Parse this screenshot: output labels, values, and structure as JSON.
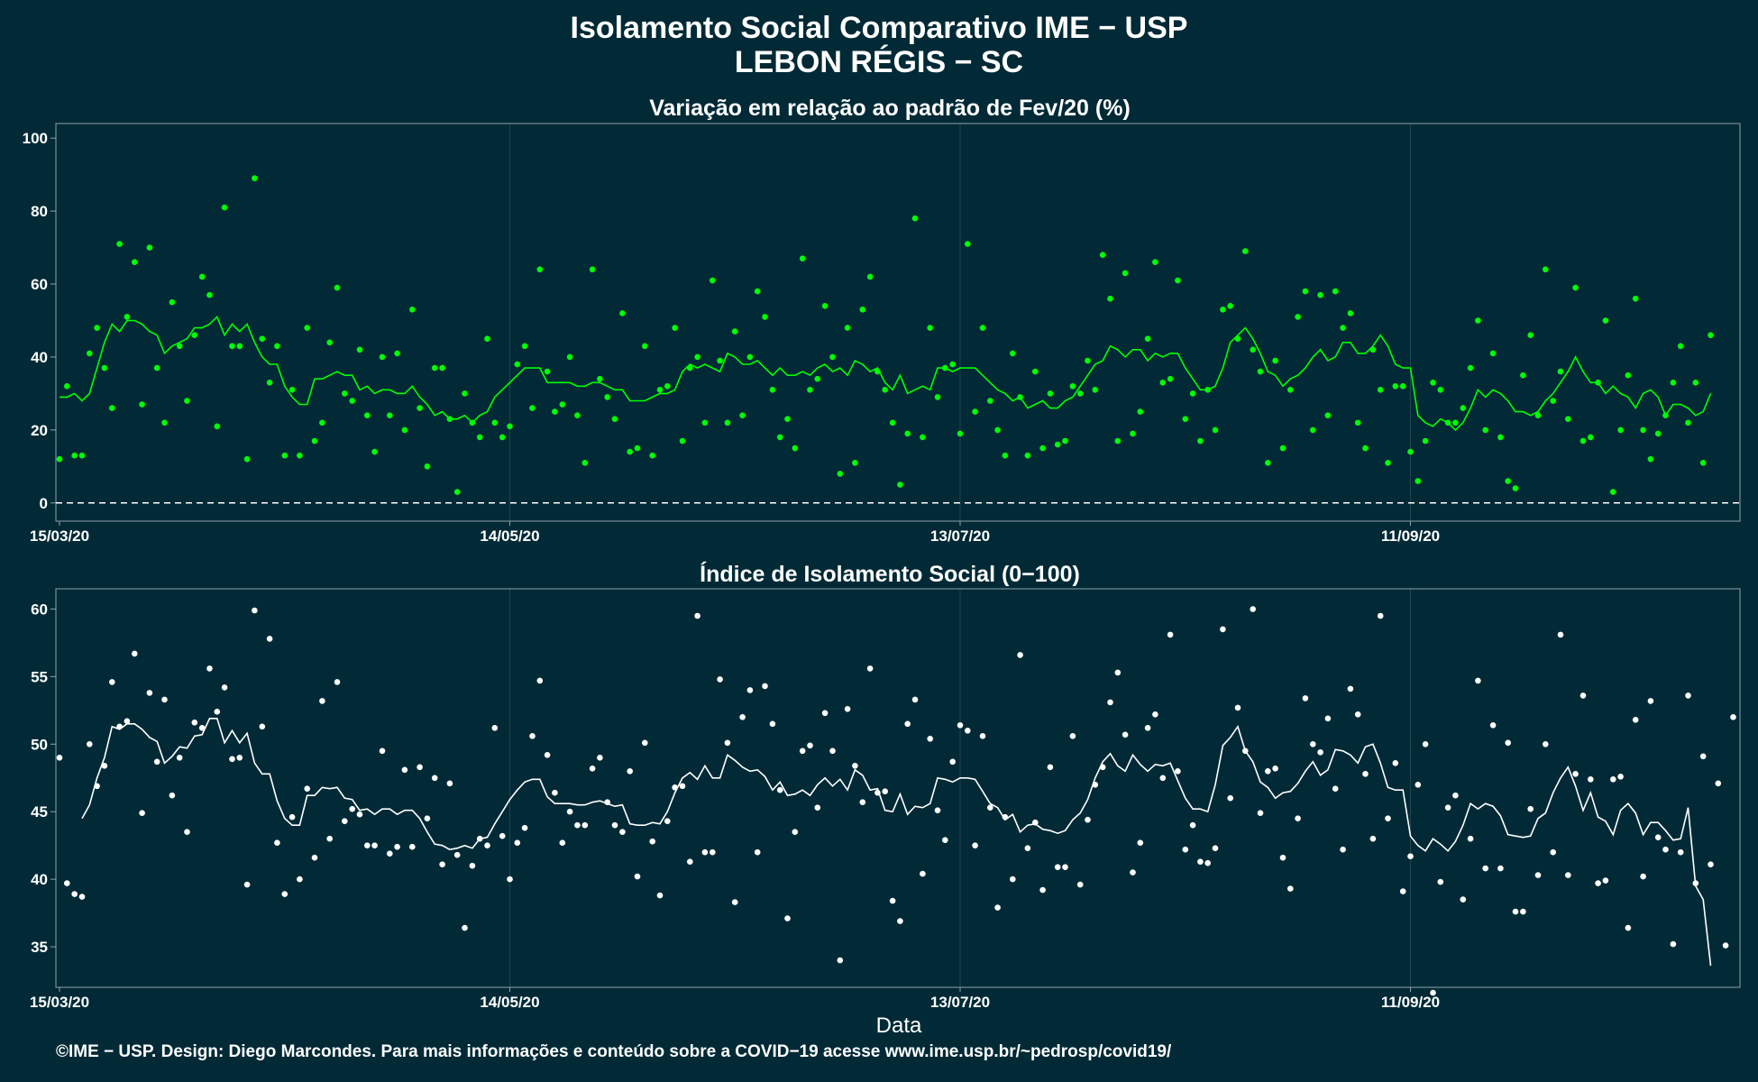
{
  "title": "Isolamento Social Comparativo IME − USP",
  "subtitle": "LEBON RÉGIS − SC",
  "footer": "©IME − USP. Design: Diego Marcondes. Para mais informações e conteúdo sobre a COVID−19 acesse www.ime.usp.br/~pedrosp/covid19/",
  "colors": {
    "background": "#012a36",
    "panel_border": "#8fa3a9",
    "grid": "#23434d",
    "series_top": "#00ff00",
    "series_bottom": "#ffffff"
  },
  "chart_data": [
    {
      "type": "scatter",
      "title": "Variação em relação ao padrão de Fev/20 (%)",
      "xlabel": "",
      "x_start": "15/03/20",
      "xticks": [
        "15/03/20",
        "14/05/20",
        "13/07/20",
        "11/09/20"
      ],
      "xtick_day_offsets": [
        0,
        60,
        120,
        180
      ],
      "ylim": [
        -5,
        104
      ],
      "yticks": [
        0,
        20,
        40,
        60,
        80,
        100
      ],
      "reference_line": 0,
      "series": [
        {
          "points": [
            12,
            32,
            13,
            13,
            41,
            48,
            37,
            26,
            71,
            51,
            66,
            27,
            70,
            37,
            22,
            55,
            43,
            28,
            46,
            62,
            57,
            21,
            81,
            43,
            43,
            12,
            89,
            45,
            33,
            43,
            13,
            31,
            13,
            48,
            17,
            22,
            44,
            59,
            30,
            28,
            42,
            24,
            14,
            40,
            24,
            41,
            20,
            53,
            26,
            10,
            37,
            37,
            23,
            3,
            30,
            22,
            18,
            45,
            22,
            18,
            21,
            38,
            43,
            26,
            64,
            36,
            25,
            27,
            40,
            24,
            11,
            64,
            34,
            29,
            23,
            52,
            14,
            15,
            43,
            13,
            31,
            32,
            48,
            17,
            37,
            40,
            22,
            61,
            39,
            22,
            47,
            24,
            40,
            58,
            51,
            31,
            18,
            23,
            15,
            67,
            31,
            34,
            54,
            40,
            8,
            48,
            11,
            53,
            62,
            36,
            31,
            22,
            5,
            19,
            78,
            18,
            48,
            29,
            37,
            38,
            19,
            71,
            25,
            48,
            28,
            20,
            13,
            41,
            29,
            13,
            36,
            15,
            30,
            16,
            17,
            32,
            30,
            39,
            31,
            68,
            56,
            17,
            63,
            19,
            25,
            45,
            66,
            33,
            34,
            61,
            23,
            30,
            17,
            31,
            20,
            53,
            54,
            45,
            69,
            42,
            36,
            11,
            39,
            15,
            31,
            51,
            58,
            20,
            57,
            24,
            58,
            48,
            52,
            22,
            15,
            42,
            31,
            11,
            32,
            32,
            14,
            6,
            17,
            33,
            31,
            22,
            22,
            26,
            37,
            50,
            20,
            41,
            18,
            6,
            4,
            35,
            46,
            24,
            64,
            28,
            36,
            23,
            59,
            17,
            18,
            33,
            50,
            3,
            20,
            35,
            56,
            20,
            12,
            19,
            24,
            33,
            43,
            22,
            33,
            11,
            46
          ]
        },
        {
          "smooth": [
            29,
            29,
            30,
            28,
            30,
            37,
            44,
            49,
            47,
            50,
            50,
            49,
            47,
            46,
            41,
            43,
            44,
            45,
            48,
            48,
            49,
            51,
            46,
            49,
            47,
            49,
            44,
            40,
            38,
            38,
            32,
            29,
            27,
            27,
            34,
            34,
            35,
            36,
            35,
            35,
            31,
            32,
            30,
            31,
            31,
            30,
            30,
            32,
            29,
            27,
            24,
            25,
            23,
            23,
            24,
            22,
            24,
            25,
            29,
            31,
            33,
            35,
            37,
            37,
            37,
            33,
            33,
            33,
            33,
            32,
            32,
            33,
            33,
            32,
            31,
            31,
            28,
            28,
            28,
            29,
            30,
            30,
            31,
            36,
            38,
            37,
            38,
            37,
            36,
            41,
            40,
            38,
            38,
            39,
            37,
            35,
            37,
            35,
            35,
            36,
            35,
            37,
            38,
            36,
            37,
            35,
            39,
            38,
            36,
            37,
            33,
            31,
            35,
            30,
            31,
            32,
            31,
            37,
            37,
            36,
            37,
            37,
            37,
            35,
            33,
            31,
            30,
            28,
            29,
            26,
            27,
            28,
            26,
            26,
            28,
            29,
            32,
            35,
            38,
            39,
            43,
            42,
            40,
            42,
            42,
            39,
            41,
            40,
            41,
            41,
            37,
            34,
            31,
            31,
            32,
            37,
            44,
            46,
            48,
            45,
            41,
            36,
            35,
            32,
            34,
            35,
            37,
            40,
            42,
            39,
            40,
            44,
            44,
            41,
            41,
            43,
            46,
            43,
            38,
            37,
            37,
            24,
            22,
            21,
            23,
            22,
            20,
            22,
            26,
            31,
            29,
            31,
            30,
            28,
            25,
            25,
            24,
            25,
            28,
            30,
            33,
            36,
            40,
            36,
            33,
            33,
            30,
            32,
            30,
            29,
            26,
            30,
            31,
            29,
            24,
            27,
            27,
            26,
            24,
            25,
            30
          ]
        }
      ]
    },
    {
      "type": "scatter",
      "title": "Índice de Isolamento Social (0−100)",
      "xlabel": "Data",
      "x_start": "15/03/20",
      "xticks": [
        "15/03/20",
        "14/05/20",
        "13/07/20",
        "11/09/20"
      ],
      "xtick_day_offsets": [
        0,
        60,
        120,
        180
      ],
      "ylim": [
        32,
        61.5
      ],
      "yticks": [
        35,
        40,
        45,
        50,
        55,
        60
      ],
      "series": [
        {
          "points": [
            49,
            39.7,
            38.9,
            38.7,
            50,
            46.9,
            48.4,
            54.6,
            51.3,
            51.7,
            56.7,
            44.9,
            53.8,
            48.7,
            53.3,
            46.2,
            49,
            43.5,
            51.6,
            51.2,
            55.6,
            52.4,
            54.2,
            48.9,
            49,
            39.6,
            59.9,
            51.3,
            57.8,
            42.7,
            38.9,
            44.6,
            40,
            46.7,
            41.6,
            53.2,
            43,
            54.6,
            44.3,
            45.2,
            44.8,
            42.5,
            42.5,
            49.5,
            41.9,
            42.4,
            48.1,
            42.4,
            48.3,
            44.5,
            47.5,
            41.1,
            47.1,
            41.8,
            36.4,
            41,
            43,
            42.5,
            51.2,
            43.2,
            40,
            42.7,
            43.8,
            50.6,
            54.7,
            49.2,
            46.4,
            42.7,
            45,
            44,
            44,
            48.2,
            49,
            45.7,
            44,
            43.5,
            48,
            40.2,
            50.1,
            42.8,
            38.8,
            44.3,
            46.8,
            46.9,
            41.3,
            59.5,
            42,
            42,
            54.8,
            50.1,
            38.3,
            52,
            54,
            42,
            54.3,
            51.5,
            46.6,
            37.1,
            43.5,
            49.5,
            49.9,
            45.3,
            52.3,
            49.5,
            34,
            52.6,
            48.4,
            45.7,
            55.6,
            46.4,
            46.5,
            38.4,
            36.9,
            51.5,
            53.3,
            40.4,
            50.4,
            45.1,
            42.9,
            48.7,
            51.4,
            51,
            42.5,
            50.6,
            45.3,
            37.9,
            44.6,
            40,
            56.6,
            42.3,
            44.2,
            39.2,
            48.3,
            40.9,
            40.9,
            50.6,
            39.6,
            44.4,
            47,
            48.3,
            53.1,
            55.3,
            50.7,
            40.5,
            42.7,
            51.2,
            52.2,
            47.5,
            58.1,
            48,
            42.2,
            44,
            41.3,
            41.2,
            42.3,
            58.5,
            46,
            52.7,
            49.5,
            60,
            44.9,
            48,
            48.2,
            41.6,
            39.3,
            44.5,
            53.4,
            50,
            49.4,
            51.9,
            46.7,
            42.2,
            54.1,
            52.2,
            47.8,
            43,
            59.5,
            44.5,
            48.6,
            39.1,
            41.7,
            47,
            50,
            31.6,
            39.8,
            45.3,
            46.2,
            38.5,
            43,
            54.7,
            40.8,
            51.4,
            40.8,
            50.1,
            37.6,
            37.6,
            45.2,
            40.3,
            50,
            42,
            58.1,
            40.3,
            47.8,
            53.6,
            47.4,
            39.7,
            39.9,
            47.4,
            47.6,
            36.4,
            51.8,
            40.2,
            53.2,
            43.1,
            42.2,
            35.2,
            42,
            53.6,
            39.7,
            49.1,
            41.1,
            47.1,
            35.1,
            52
          ]
        },
        {
          "smooth": [
            null,
            null,
            null,
            44.5,
            45.5,
            47.5,
            49,
            51.3,
            51.1,
            51.5,
            51.5,
            51.1,
            50.5,
            50.2,
            48.6,
            49.1,
            49.8,
            49.7,
            50.6,
            50.7,
            51.9,
            51.9,
            50.1,
            51,
            50.1,
            50.8,
            48.6,
            47.8,
            47.8,
            45.8,
            44.5,
            44,
            44,
            46.2,
            46.2,
            46.8,
            46.7,
            46.8,
            46,
            45.9,
            45.1,
            45.2,
            44.8,
            45.2,
            45.2,
            44.8,
            45.1,
            45.1,
            44.5,
            43.5,
            42.6,
            42.5,
            42.2,
            42.3,
            42.5,
            42.3,
            43,
            43.1,
            44.1,
            45,
            45.9,
            46.6,
            47.2,
            47.4,
            47.4,
            46.1,
            45.6,
            45.6,
            45.6,
            45.5,
            45.5,
            45.7,
            45.8,
            45.6,
            45.4,
            45.5,
            44.1,
            44,
            44,
            44.2,
            44.1,
            45,
            46.4,
            47.5,
            47.9,
            47.4,
            48.4,
            47.5,
            47.5,
            49.2,
            48.8,
            48.3,
            48,
            48.1,
            47.6,
            46.6,
            47.2,
            46.2,
            46.3,
            46.6,
            46.2,
            47,
            47.5,
            46.9,
            47.4,
            46.6,
            48.1,
            47.7,
            46.6,
            46.7,
            45.1,
            45,
            46.3,
            44.8,
            45.4,
            45.3,
            45.6,
            47.5,
            47.4,
            47.2,
            47.5,
            47.5,
            47.4,
            46.5,
            45.6,
            45.3,
            44.4,
            44.8,
            43.5,
            44,
            44.1,
            43.7,
            43.6,
            43.4,
            43.6,
            44.4,
            44.9,
            45.9,
            47.5,
            48.7,
            49.3,
            48.4,
            48,
            49.2,
            48.5,
            48,
            48.5,
            48.4,
            48.6,
            47.3,
            46,
            45.2,
            45.2,
            45,
            47,
            49.9,
            50.5,
            51.3,
            49.5,
            48.7,
            47.2,
            46.8,
            46,
            46.4,
            46.5,
            47.1,
            48,
            48.7,
            47.7,
            48.1,
            49.6,
            49.5,
            49.2,
            48.6,
            49.8,
            50,
            48.6,
            46.8,
            46.6,
            46.6,
            43.2,
            42.5,
            42.1,
            43,
            42.6,
            42.1,
            42.8,
            44,
            45.6,
            45.2,
            45.6,
            45.4,
            44.7,
            43.3,
            43.2,
            43.1,
            43.2,
            44.5,
            44.9,
            46.4,
            47.5,
            48.3,
            46.9,
            45.1,
            46.4,
            44.6,
            44.3,
            43.3,
            45.1,
            45.6,
            44.9,
            43.3,
            44.2,
            44.2,
            43.6,
            42.9,
            43,
            45.3,
            39.5,
            38.5,
            33.6
          ]
        }
      ]
    }
  ]
}
